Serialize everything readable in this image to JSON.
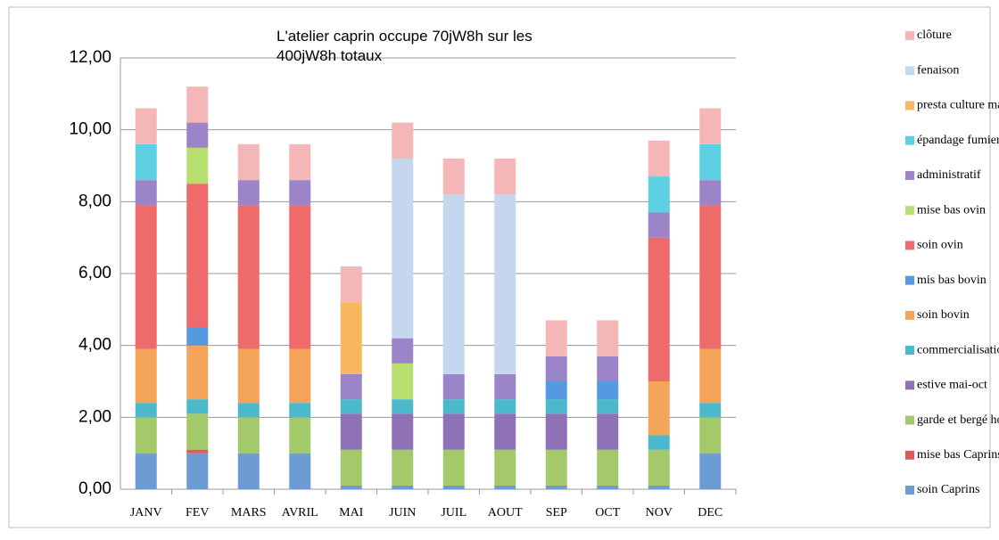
{
  "chart_data": {
    "type": "stacked_bar",
    "annotation": "L'atelier caprin occupe 70jW8h sur les 400jW8h totaux",
    "categories": [
      "JANV",
      "FEV",
      "MARS",
      "AVRIL",
      "MAI",
      "JUIN",
      "JUIL",
      "AOUT",
      "SEP",
      "OCT",
      "NOV",
      "DEC"
    ],
    "series": [
      {
        "name": "soin Caprins",
        "color": "#6d9bd4",
        "values": [
          1,
          1,
          1,
          1,
          0.1,
          0.1,
          0.1,
          0.1,
          0.1,
          0.1,
          0.1,
          1
        ]
      },
      {
        "name": "mise bas Caprins",
        "color": "#e05a5a",
        "values": [
          0,
          0.1,
          0,
          0,
          0,
          0,
          0,
          0,
          0,
          0,
          0,
          0
        ]
      },
      {
        "name": "garde et bergé hors estive",
        "color": "#a3c96a",
        "values": [
          1,
          1,
          1,
          1,
          1,
          1,
          1,
          1,
          1,
          1,
          1,
          1
        ]
      },
      {
        "name": "estive mai-oct",
        "color": "#8e72b5",
        "values": [
          0,
          0,
          0,
          0,
          1,
          1,
          1,
          1,
          1,
          1,
          0,
          0
        ]
      },
      {
        "name": "commercialisation",
        "color": "#4bb8cc",
        "values": [
          0.4,
          0.4,
          0.4,
          0.4,
          0.4,
          0.4,
          0.4,
          0.4,
          0.4,
          0.4,
          0.4,
          0.4
        ]
      },
      {
        "name": "soin bovin",
        "color": "#f4a55a",
        "values": [
          1.5,
          1.5,
          1.5,
          1.5,
          0,
          0,
          0,
          0,
          0,
          0,
          1.5,
          1.5
        ]
      },
      {
        "name": "mis bas bovin",
        "color": "#5599e0",
        "values": [
          0,
          0.5,
          0,
          0,
          0,
          0,
          0,
          0,
          0.5,
          0.5,
          0,
          0
        ]
      },
      {
        "name": "soin ovin",
        "color": "#ef6a6a",
        "values": [
          4,
          4,
          4,
          4,
          0,
          0,
          0,
          0,
          0,
          0,
          4,
          4
        ]
      },
      {
        "name": "mise bas ovin",
        "color": "#b8e070",
        "values": [
          0,
          1,
          0,
          0,
          0,
          1,
          0,
          0,
          0,
          0,
          0,
          0
        ]
      },
      {
        "name": "administratif",
        "color": "#9c84c8",
        "values": [
          0.7,
          0.7,
          0.7,
          0.7,
          0.7,
          0.7,
          0.7,
          0.7,
          0.7,
          0.7,
          0.7,
          0.7
        ]
      },
      {
        "name": "épandage fumier prairie",
        "color": "#5ccfe0",
        "values": [
          1,
          0,
          0,
          0,
          0,
          0,
          0,
          0,
          0,
          0,
          1,
          1
        ]
      },
      {
        "name": "presta culture maïs",
        "color": "#f8b860",
        "values": [
          0,
          0,
          0,
          0,
          2,
          0,
          0,
          0,
          0,
          0,
          0,
          0
        ]
      },
      {
        "name": "fenaison",
        "color": "#c5d6ef",
        "values": [
          0,
          0,
          0,
          0,
          0,
          5,
          5,
          5,
          0,
          0,
          0,
          0
        ]
      },
      {
        "name": "clôture",
        "color": "#f4b6b6",
        "values": [
          1,
          1,
          1,
          1,
          1,
          1,
          1,
          1,
          1,
          1,
          1,
          1
        ]
      }
    ],
    "ylim": [
      0,
      12
    ],
    "yticks": [
      {
        "value": 0,
        "label": "0,00"
      },
      {
        "value": 2,
        "label": "2,00"
      },
      {
        "value": 4,
        "label": "4,00"
      },
      {
        "value": 6,
        "label": "6,00"
      },
      {
        "value": 8,
        "label": "8,00"
      },
      {
        "value": 10,
        "label": "10,00"
      },
      {
        "value": 12,
        "label": "12,00"
      }
    ],
    "grid": true
  }
}
